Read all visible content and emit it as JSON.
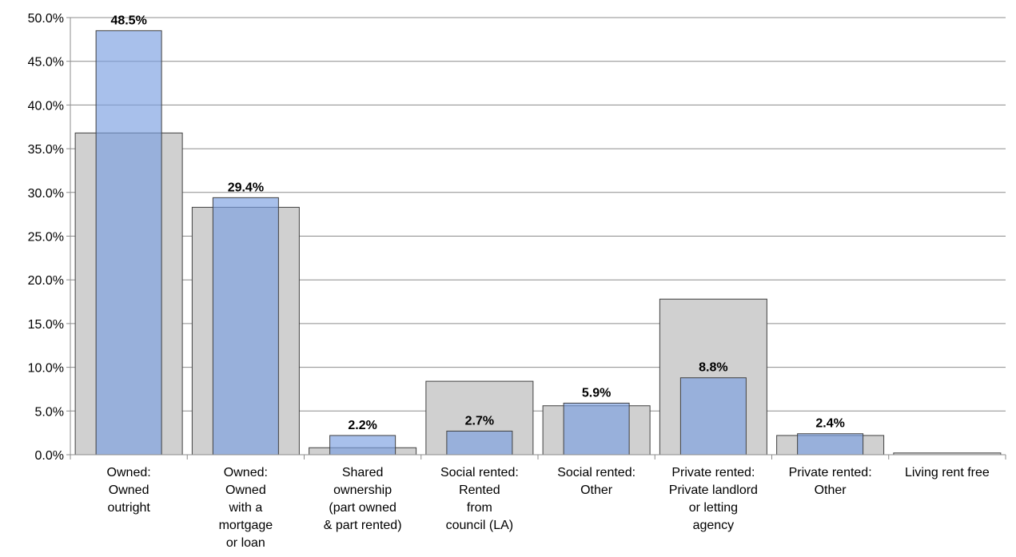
{
  "chart_data": {
    "type": "bar",
    "categories": [
      "Owned:\nOwned\noutright",
      "Owned:\nOwned\nwith a\nmortgage\nor loan",
      "Shared\nownership\n(part owned\n& part rented)",
      "Social rented:\nRented\nfrom\ncouncil (LA)",
      "Social rented:\nOther",
      "Private rented:\nPrivate landlord\nor letting\nagency",
      "Private rented:\nOther",
      "Living rent free"
    ],
    "series": [
      {
        "color": "#d0d0d0",
        "values": [
          36.8,
          28.3,
          0.8,
          8.4,
          5.6,
          17.8,
          2.2,
          0.2
        ]
      },
      {
        "color": "#7a9ee0",
        "values": [
          48.5,
          29.4,
          2.2,
          2.7,
          5.9,
          8.8,
          2.4,
          null
        ],
        "value_labels": [
          "48.5%",
          "29.4%",
          "2.2%",
          "2.7%",
          "5.9%",
          "8.8%",
          "2.4%",
          null
        ]
      }
    ],
    "ylim": [
      0,
      50
    ],
    "yticks": [
      {
        "value": 0,
        "label": "0.0%"
      },
      {
        "value": 5,
        "label": "5.0%"
      },
      {
        "value": 10,
        "label": "10.0%"
      },
      {
        "value": 15,
        "label": "15.0%"
      },
      {
        "value": 20,
        "label": "20.0%"
      },
      {
        "value": 25,
        "label": "25.0%"
      },
      {
        "value": 30,
        "label": "30.0%"
      },
      {
        "value": 35,
        "label": "35.0%"
      },
      {
        "value": 40,
        "label": "40.0%"
      },
      {
        "value": 45,
        "label": "45.0%"
      },
      {
        "value": 50,
        "label": "50.0%"
      }
    ],
    "grid": true
  }
}
